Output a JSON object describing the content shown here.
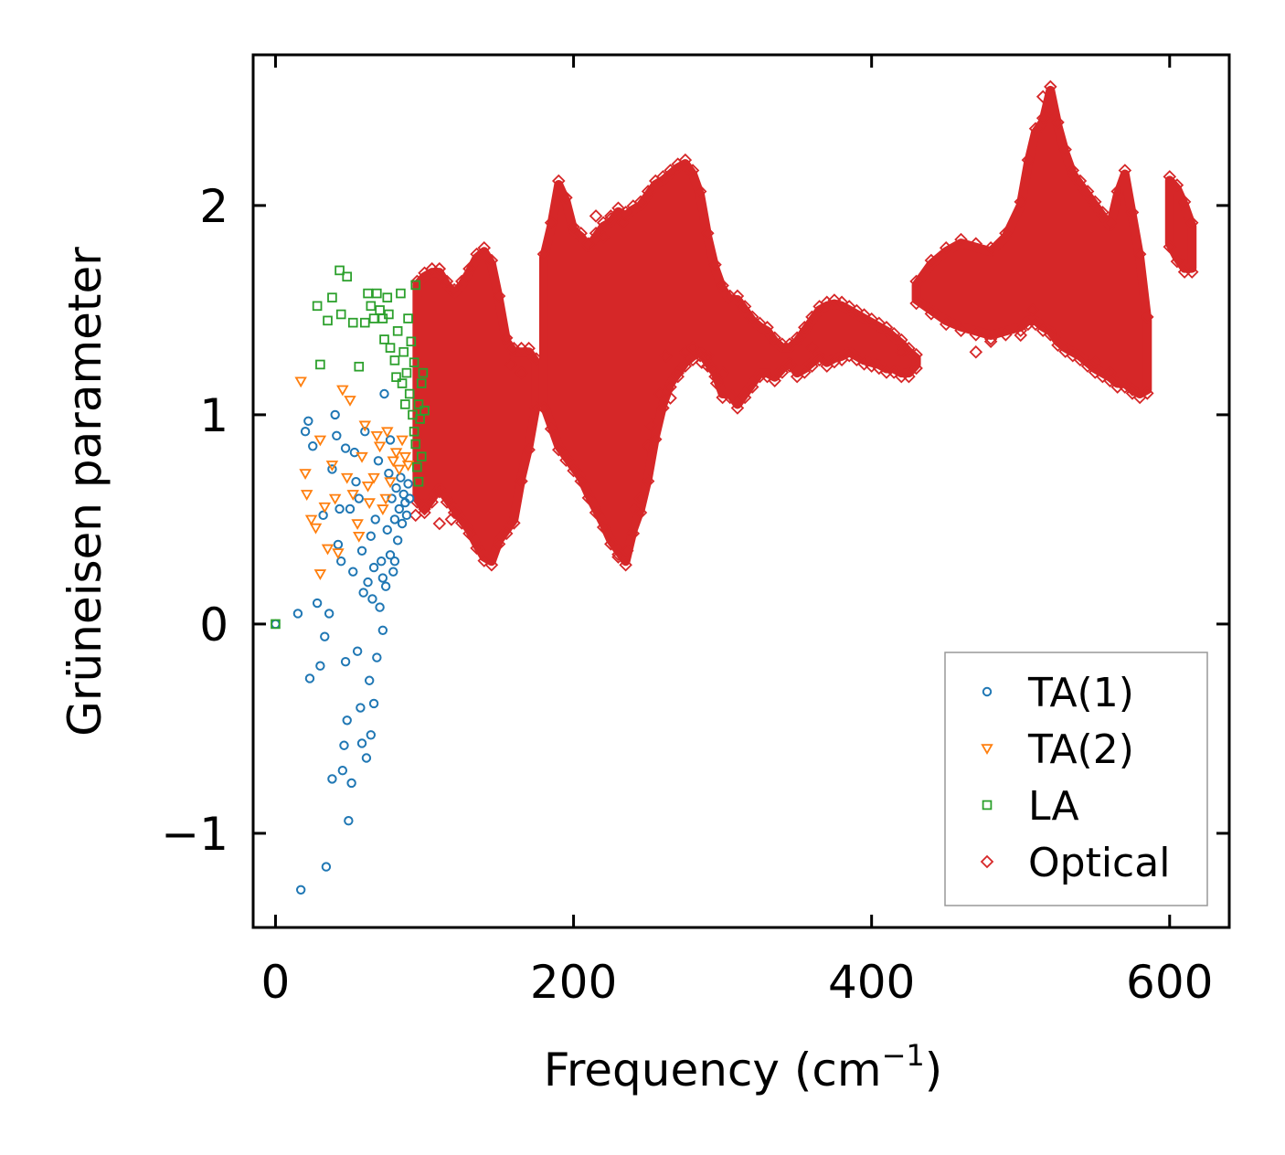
{
  "chart_data": {
    "type": "scatter",
    "title": "",
    "xlabel": "Frequency (cm",
    "xlabel_sup": "−1",
    "xlabel_end": ")",
    "ylabel": "Grüneisen parameter",
    "xlim": [
      -15,
      640
    ],
    "ylim": [
      -1.45,
      2.72
    ],
    "xticks": [
      0,
      200,
      400,
      600
    ],
    "xtick_labels": [
      "0",
      "200",
      "400",
      "600"
    ],
    "yticks": [
      -1,
      0,
      1,
      2
    ],
    "ytick_labels": [
      "−1",
      "0",
      "1",
      "2"
    ],
    "grid": false,
    "legend_position": "lower-right",
    "series": [
      {
        "name": "TA(1)",
        "marker": "circle",
        "color": "#1f77b4",
        "points": [
          [
            0,
            0
          ],
          [
            15,
            0.05
          ],
          [
            17,
            -1.27
          ],
          [
            20,
            0.92
          ],
          [
            22,
            0.97
          ],
          [
            23,
            -0.26
          ],
          [
            25,
            0.85
          ],
          [
            28,
            0.1
          ],
          [
            30,
            -0.2
          ],
          [
            32,
            0.52
          ],
          [
            33,
            -0.06
          ],
          [
            34,
            -1.16
          ],
          [
            36,
            0.05
          ],
          [
            38,
            0.74
          ],
          [
            38,
            -0.74
          ],
          [
            40,
            1.0
          ],
          [
            42,
            0.38
          ],
          [
            44,
            0.3
          ],
          [
            45,
            -0.7
          ],
          [
            46,
            -0.58
          ],
          [
            47,
            -0.18
          ],
          [
            48,
            -0.46
          ],
          [
            49,
            -0.94
          ],
          [
            50,
            0.55
          ],
          [
            51,
            -0.76
          ],
          [
            52,
            0.25
          ],
          [
            54,
            0.68
          ],
          [
            55,
            -0.13
          ],
          [
            56,
            0.6
          ],
          [
            57,
            -0.4
          ],
          [
            58,
            -0.57
          ],
          [
            60,
            0.92
          ],
          [
            61,
            -0.64
          ],
          [
            62,
            0.2
          ],
          [
            63,
            -0.27
          ],
          [
            64,
            -0.53
          ],
          [
            65,
            0.12
          ],
          [
            66,
            -0.38
          ],
          [
            67,
            0.5
          ],
          [
            68,
            -0.16
          ],
          [
            70,
            0.08
          ],
          [
            71,
            0.3
          ],
          [
            72,
            -0.03
          ],
          [
            73,
            1.1
          ],
          [
            74,
            0.18
          ],
          [
            75,
            0.45
          ],
          [
            76,
            0.72
          ],
          [
            77,
            0.33
          ],
          [
            78,
            0.6
          ],
          [
            79,
            0.25
          ],
          [
            80,
            0.5
          ],
          [
            81,
            0.65
          ],
          [
            82,
            0.4
          ],
          [
            83,
            0.55
          ],
          [
            84,
            0.7
          ],
          [
            85,
            0.48
          ],
          [
            86,
            0.62
          ],
          [
            87,
            0.58
          ],
          [
            88,
            0.52
          ],
          [
            89,
            0.67
          ],
          [
            90,
            0.6
          ],
          [
            41,
            0.9
          ],
          [
            53,
            0.82
          ],
          [
            58,
            0.35
          ],
          [
            64,
            0.42
          ],
          [
            69,
            0.78
          ],
          [
            72,
            0.22
          ],
          [
            77,
            0.88
          ],
          [
            80,
            0.3
          ],
          [
            43,
            0.55
          ],
          [
            47,
            0.84
          ],
          [
            59,
            0.15
          ],
          [
            66,
            0.27
          ]
        ]
      },
      {
        "name": "TA(2)",
        "marker": "triangle-down",
        "color": "#ff7f0e",
        "points": [
          [
            17,
            1.16
          ],
          [
            20,
            0.72
          ],
          [
            21,
            0.62
          ],
          [
            24,
            0.5
          ],
          [
            27,
            0.46
          ],
          [
            30,
            0.24
          ],
          [
            33,
            0.56
          ],
          [
            35,
            0.36
          ],
          [
            38,
            0.76
          ],
          [
            42,
            0.34
          ],
          [
            45,
            1.12
          ],
          [
            50,
            1.07
          ],
          [
            52,
            0.62
          ],
          [
            55,
            0.48
          ],
          [
            58,
            0.8
          ],
          [
            60,
            0.95
          ],
          [
            63,
            0.58
          ],
          [
            66,
            0.7
          ],
          [
            68,
            0.9
          ],
          [
            70,
            0.85
          ],
          [
            72,
            0.55
          ],
          [
            75,
            0.92
          ],
          [
            77,
            0.68
          ],
          [
            79,
            0.78
          ],
          [
            81,
            0.82
          ],
          [
            83,
            0.74
          ],
          [
            85,
            0.88
          ],
          [
            87,
            0.8
          ],
          [
            89,
            0.76
          ],
          [
            48,
            0.7
          ],
          [
            56,
            0.42
          ],
          [
            62,
            0.66
          ],
          [
            74,
            0.6
          ],
          [
            30,
            0.88
          ],
          [
            40,
            0.6
          ]
        ]
      },
      {
        "name": "LA",
        "marker": "square",
        "color": "#2ca02c",
        "points": [
          [
            0,
            0
          ],
          [
            28,
            1.52
          ],
          [
            30,
            1.24
          ],
          [
            35,
            1.45
          ],
          [
            38,
            1.56
          ],
          [
            43,
            1.69
          ],
          [
            44,
            1.48
          ],
          [
            48,
            1.66
          ],
          [
            52,
            1.44
          ],
          [
            56,
            1.23
          ],
          [
            60,
            1.44
          ],
          [
            62,
            1.58
          ],
          [
            64,
            1.52
          ],
          [
            66,
            1.46
          ],
          [
            68,
            1.58
          ],
          [
            70,
            1.5
          ],
          [
            72,
            1.46
          ],
          [
            75,
            1.56
          ],
          [
            77,
            1.32
          ],
          [
            80,
            1.26
          ],
          [
            82,
            1.4
          ],
          [
            84,
            1.58
          ],
          [
            86,
            1.3
          ],
          [
            88,
            1.2
          ],
          [
            90,
            1.1
          ],
          [
            92,
            1.0
          ],
          [
            93,
            0.92
          ],
          [
            94,
            0.86
          ],
          [
            95,
            0.75
          ],
          [
            96,
            1.05
          ],
          [
            97,
            0.98
          ],
          [
            98,
            1.15
          ],
          [
            99,
            1.2
          ],
          [
            100,
            1.02
          ],
          [
            91,
            1.35
          ],
          [
            89,
            1.46
          ],
          [
            94,
            1.62
          ],
          [
            96,
            0.68
          ],
          [
            85,
            1.15
          ],
          [
            87,
            1.05
          ],
          [
            93,
            1.25
          ],
          [
            98,
            0.8
          ],
          [
            76,
            1.48
          ],
          [
            73,
            1.36
          ],
          [
            81,
            1.18
          ]
        ]
      },
      {
        "name": "Optical",
        "marker": "diamond",
        "color": "#d62728",
        "bands": [
          {
            "x": [
              95,
              100,
              105,
              110,
              115,
              120,
              125,
              130,
              135,
              140,
              145,
              150,
              155,
              160,
              165,
              170,
              175
            ],
            "low": [
              0.6,
              0.55,
              0.6,
              0.65,
              0.6,
              0.55,
              0.5,
              0.45,
              0.38,
              0.32,
              0.3,
              0.4,
              0.45,
              0.5,
              0.7,
              0.85,
              1.05
            ],
            "high": [
              1.62,
              1.66,
              1.68,
              1.68,
              1.62,
              1.58,
              1.62,
              1.68,
              1.75,
              1.78,
              1.72,
              1.55,
              1.35,
              1.3,
              1.3,
              1.3,
              1.25
            ]
          },
          {
            "x": [
              180,
              185,
              190,
              195,
              200,
              205,
              210,
              215,
              220,
              225,
              230,
              235,
              240,
              245,
              250,
              255,
              260,
              265,
              270,
              275,
              280,
              285,
              290,
              295,
              300,
              305,
              310,
              315,
              320,
              325,
              330,
              335,
              340,
              345,
              350,
              355,
              360,
              365,
              370,
              375,
              380,
              385,
              390,
              395,
              400,
              405,
              410,
              415,
              420,
              425,
              430
            ],
            "low": [
              1.05,
              0.95,
              0.85,
              0.8,
              0.75,
              0.7,
              0.62,
              0.55,
              0.48,
              0.4,
              0.35,
              0.3,
              0.45,
              0.55,
              0.7,
              0.9,
              1.05,
              1.15,
              1.2,
              1.25,
              1.28,
              1.3,
              1.25,
              1.2,
              1.1,
              1.1,
              1.05,
              1.1,
              1.15,
              1.2,
              1.2,
              1.18,
              1.22,
              1.25,
              1.2,
              1.22,
              1.25,
              1.28,
              1.25,
              1.27,
              1.28,
              1.3,
              1.28,
              1.26,
              1.25,
              1.24,
              1.22,
              1.22,
              1.2,
              1.2,
              1.24
            ],
            "high": [
              1.75,
              1.9,
              2.1,
              2.02,
              1.88,
              1.85,
              1.8,
              1.85,
              1.9,
              1.92,
              1.97,
              1.95,
              1.98,
              2.0,
              2.05,
              2.1,
              2.12,
              2.15,
              2.18,
              2.2,
              2.15,
              2.05,
              1.85,
              1.7,
              1.6,
              1.55,
              1.55,
              1.5,
              1.45,
              1.42,
              1.4,
              1.35,
              1.32,
              1.32,
              1.35,
              1.4,
              1.45,
              1.5,
              1.52,
              1.53,
              1.52,
              1.5,
              1.48,
              1.46,
              1.44,
              1.42,
              1.4,
              1.37,
              1.34,
              1.3,
              1.27
            ]
          },
          {
            "x": [
              430,
              440,
              450,
              460,
              470,
              480,
              490,
              500,
              505,
              510,
              515,
              520,
              525,
              530,
              535,
              540,
              545,
              550,
              555,
              560,
              565,
              570,
              575,
              580,
              585
            ],
            "low": [
              1.55,
              1.5,
              1.45,
              1.42,
              1.4,
              1.38,
              1.4,
              1.42,
              1.45,
              1.45,
              1.42,
              1.4,
              1.35,
              1.32,
              1.3,
              1.28,
              1.25,
              1.22,
              1.2,
              1.18,
              1.15,
              1.15,
              1.12,
              1.1,
              1.12
            ],
            "high": [
              1.62,
              1.72,
              1.78,
              1.82,
              1.8,
              1.78,
              1.85,
              2.0,
              2.2,
              2.35,
              2.4,
              2.55,
              2.38,
              2.25,
              2.15,
              2.1,
              2.05,
              2.0,
              1.95,
              1.9,
              2.05,
              2.15,
              1.95,
              1.75,
              1.45
            ]
          },
          {
            "x": [
              600,
              605,
              610,
              615
            ],
            "low": [
              1.82,
              1.75,
              1.7,
              1.7
            ],
            "high": [
              2.12,
              2.08,
              2.0,
              1.9
            ]
          }
        ],
        "scatter": [
          [
            110,
            0.48
          ],
          [
            118,
            0.5
          ],
          [
            230,
            0.32
          ],
          [
            236,
            0.35
          ],
          [
            240,
            0.55
          ],
          [
            245,
            0.6
          ],
          [
            250,
            0.85
          ],
          [
            252,
            0.95
          ],
          [
            258,
            1.1
          ],
          [
            262,
            1.28
          ],
          [
            265,
            1.08
          ],
          [
            270,
            1.2
          ],
          [
            275,
            1.3
          ],
          [
            280,
            1.32
          ],
          [
            286,
            1.25
          ],
          [
            290,
            1.28
          ],
          [
            293,
            1.22
          ],
          [
            296,
            1.15
          ],
          [
            300,
            1.2
          ],
          [
            360,
            1.32
          ],
          [
            420,
            1.3
          ],
          [
            470,
            1.3
          ],
          [
            480,
            1.35
          ],
          [
            500,
            1.38
          ],
          [
            508,
            1.5
          ],
          [
            515,
            2.52
          ],
          [
            520,
            2.45
          ],
          [
            550,
            1.25
          ],
          [
            560,
            1.2
          ],
          [
            575,
            1.12
          ],
          [
            215,
            1.95
          ],
          [
            220,
            1.85
          ],
          [
            225,
            1.95
          ],
          [
            233,
            1.92
          ],
          [
            158,
            1.24
          ],
          [
            165,
            1.2
          ],
          [
            94,
            0.52
          ],
          [
            100,
            0.55
          ]
        ]
      }
    ]
  }
}
